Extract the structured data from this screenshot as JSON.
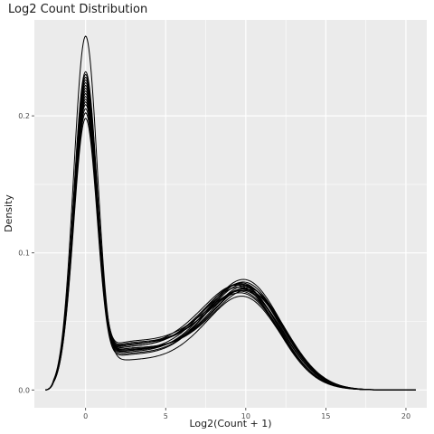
{
  "chart_data": {
    "type": "line",
    "subtype": "density",
    "title": "Log2 Count Distribution",
    "xlabel": "Log2(Count + 1)",
    "ylabel": "Density",
    "xlim": [
      -3.2,
      21.3
    ],
    "ylim": [
      -0.013,
      0.27
    ],
    "x_ticks": [
      0,
      5,
      10,
      15,
      20
    ],
    "x_tick_labels": [
      "0",
      "5",
      "10",
      "15",
      "20"
    ],
    "y_ticks": [
      0.0,
      0.1,
      0.2
    ],
    "y_tick_labels": [
      "0.0",
      "0.1",
      "0.2"
    ],
    "grid": true,
    "legend": "none",
    "line_color": "#000000",
    "panel_background": "#ebebeb",
    "grid_major_color": "#ffffff",
    "series": [
      {
        "peak0": 0.258,
        "peak10": 0.066,
        "valley": 0.022,
        "mu2": 9.9
      },
      {
        "peak0": 0.232,
        "peak10": 0.07,
        "valley": 0.034,
        "mu2": 10.0
      },
      {
        "peak0": 0.23,
        "peak10": 0.071,
        "valley": 0.032,
        "mu2": 9.8
      },
      {
        "peak0": 0.228,
        "peak10": 0.073,
        "valley": 0.03,
        "mu2": 10.1
      },
      {
        "peak0": 0.226,
        "peak10": 0.068,
        "valley": 0.036,
        "mu2": 9.9
      },
      {
        "peak0": 0.224,
        "peak10": 0.074,
        "valley": 0.029,
        "mu2": 10.0
      },
      {
        "peak0": 0.222,
        "peak10": 0.072,
        "valley": 0.033,
        "mu2": 9.7
      },
      {
        "peak0": 0.22,
        "peak10": 0.07,
        "valley": 0.031,
        "mu2": 10.2
      },
      {
        "peak0": 0.218,
        "peak10": 0.075,
        "valley": 0.028,
        "mu2": 9.9
      },
      {
        "peak0": 0.216,
        "peak10": 0.069,
        "valley": 0.035,
        "mu2": 10.0
      },
      {
        "peak0": 0.214,
        "peak10": 0.073,
        "valley": 0.032,
        "mu2": 9.8
      },
      {
        "peak0": 0.212,
        "peak10": 0.071,
        "valley": 0.03,
        "mu2": 10.1
      },
      {
        "peak0": 0.21,
        "peak10": 0.076,
        "valley": 0.027,
        "mu2": 10.0
      },
      {
        "peak0": 0.208,
        "peak10": 0.067,
        "valley": 0.034,
        "mu2": 9.9
      },
      {
        "peak0": 0.205,
        "peak10": 0.072,
        "valley": 0.031,
        "mu2": 10.2
      },
      {
        "peak0": 0.202,
        "peak10": 0.074,
        "valley": 0.029,
        "mu2": 9.8
      },
      {
        "peak0": 0.198,
        "peak10": 0.078,
        "valley": 0.026,
        "mu2": 10.0
      }
    ]
  }
}
